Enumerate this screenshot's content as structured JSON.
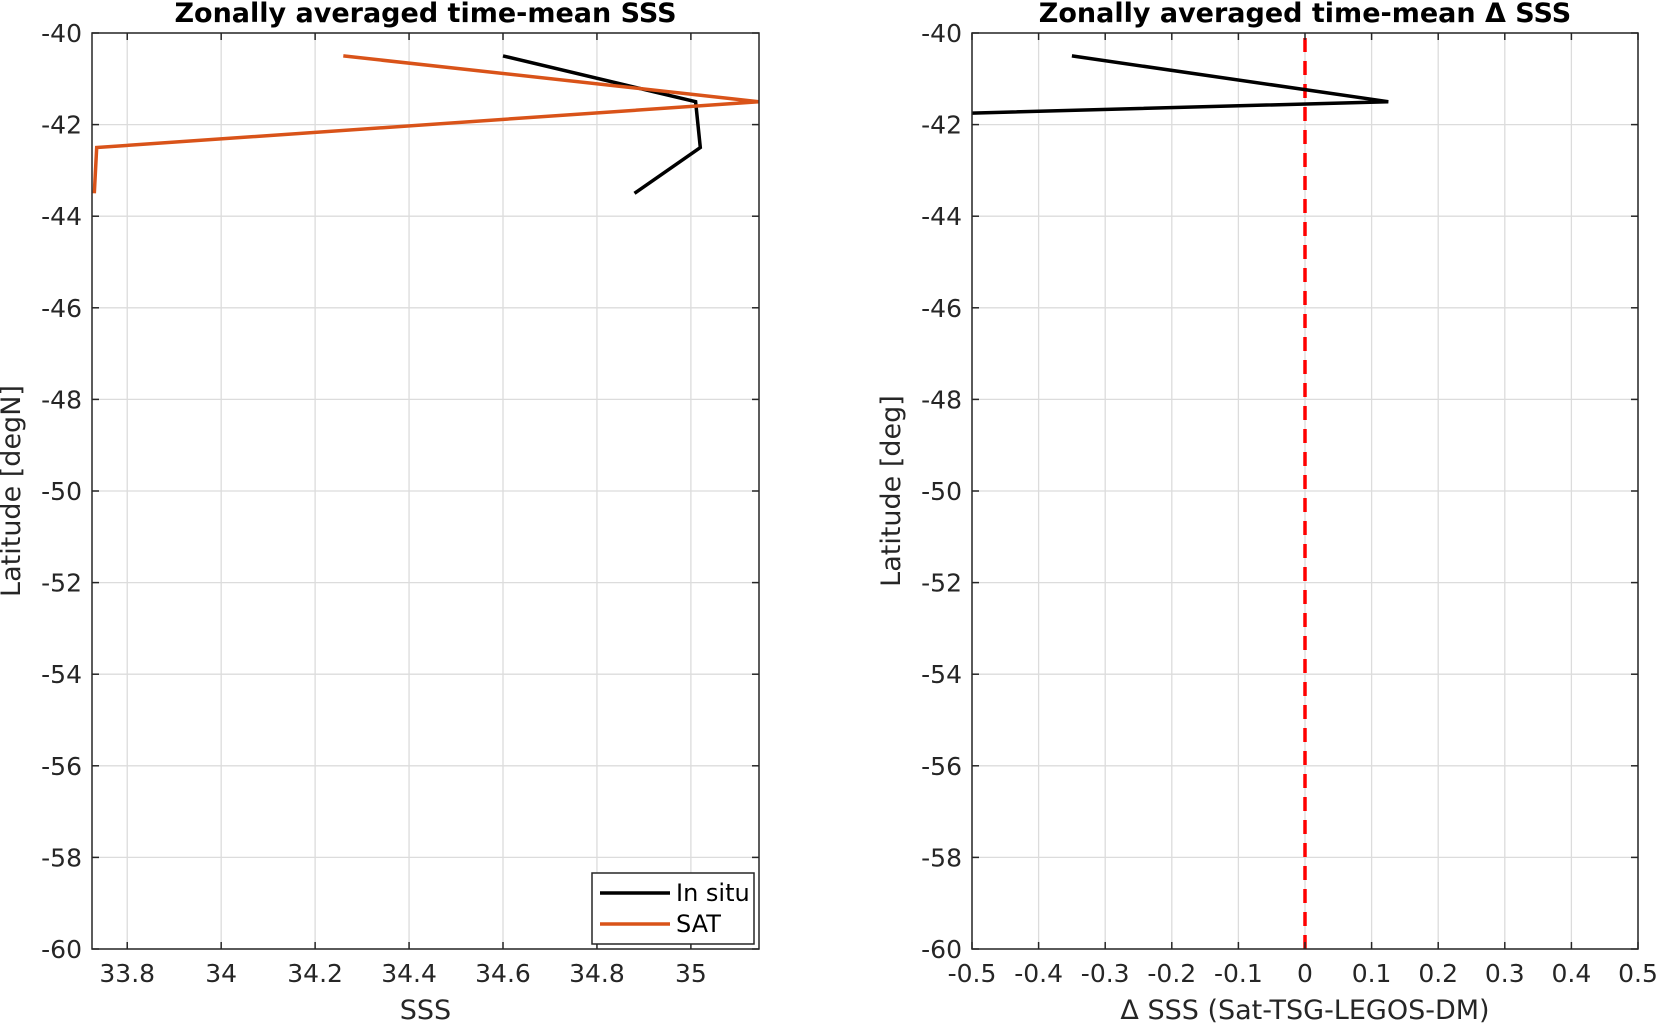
{
  "chart_data": [
    {
      "type": "line",
      "title": "Zonally averaged time-mean SSS",
      "xlabel": "SSS",
      "ylabel": "Latitude [degN]",
      "xlim": [
        33.725,
        35.145
      ],
      "ylim": [
        -60,
        -40
      ],
      "xticks": [
        33.8,
        34,
        34.2,
        34.4,
        34.6,
        34.8,
        35
      ],
      "xtick_labels": [
        "33.8",
        "34",
        "34.2",
        "34.4",
        "34.6",
        "34.8",
        "35"
      ],
      "yticks": [
        -40,
        -42,
        -44,
        -46,
        -48,
        -50,
        -52,
        -54,
        -56,
        -58,
        -60
      ],
      "ytick_labels": [
        "-40",
        "-42",
        "-44",
        "-46",
        "-48",
        "-50",
        "-52",
        "-54",
        "-56",
        "-58",
        "-60"
      ],
      "grid": true,
      "legend": "bottom-right",
      "series": [
        {
          "name": "In situ",
          "color": "#000000",
          "points": [
            [
              34.6,
              -40.5
            ],
            [
              35.01,
              -41.5
            ],
            [
              35.02,
              -42.5
            ],
            [
              34.88,
              -43.5
            ]
          ]
        },
        {
          "name": "SAT",
          "color": "#D95319",
          "points": [
            [
              34.26,
              -40.5
            ],
            [
              35.145,
              -41.5
            ],
            [
              33.735,
              -42.5
            ],
            [
              33.73,
              -43.5
            ]
          ]
        }
      ]
    },
    {
      "type": "line",
      "title": "Zonally averaged time-mean Δ SSS",
      "xlabel": "Δ SSS (Sat-TSG-LEGOS-DM)",
      "ylabel": "Latitude [deg]",
      "xlim": [
        -0.5,
        0.5
      ],
      "ylim": [
        -60,
        -40
      ],
      "xticks": [
        -0.5,
        -0.4,
        -0.3,
        -0.2,
        -0.1,
        0,
        0.1,
        0.2,
        0.3,
        0.4,
        0.5
      ],
      "xtick_labels": [
        "-0.5",
        "-0.4",
        "-0.3",
        "-0.2",
        "-0.1",
        "0",
        "0.1",
        "0.2",
        "0.3",
        "0.4",
        "0.5"
      ],
      "yticks": [
        -40,
        -42,
        -44,
        -46,
        -48,
        -50,
        -52,
        -54,
        -56,
        -58,
        -60
      ],
      "ytick_labels": [
        "-40",
        "-42",
        "-44",
        "-46",
        "-48",
        "-50",
        "-52",
        "-54",
        "-56",
        "-58",
        "-60"
      ],
      "grid": true,
      "series": [
        {
          "color": "#000000",
          "points": [
            [
              -0.35,
              -40.5
            ],
            [
              0.125,
              -41.5
            ],
            [
              -0.5,
              -41.75
            ]
          ]
        }
      ],
      "reference_line": {
        "x": 0,
        "color": "#FF0000",
        "style": "dashed"
      }
    }
  ]
}
